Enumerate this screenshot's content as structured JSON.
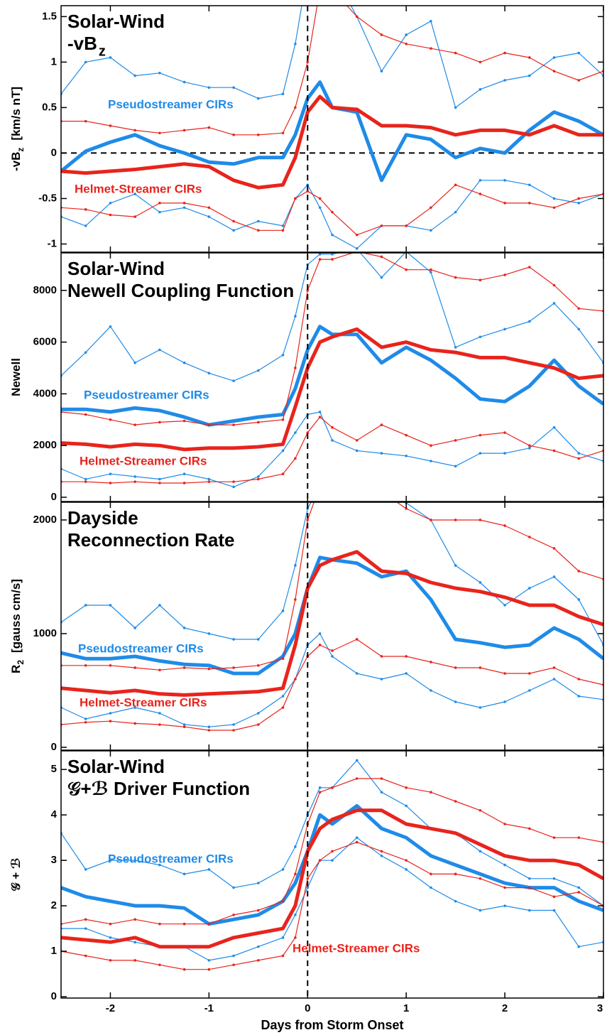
{
  "chart_data": [
    {
      "type": "line",
      "title_lines": [
        "Solar-Wind",
        "-vB"
      ],
      "title_subscript": "z",
      "ylabel": "-vB",
      "ylabel_subscript": "z",
      "ylabel_unit": "[km/s nT]",
      "zero_line": true,
      "x": [
        -2.5,
        -2.25,
        -2,
        -1.75,
        -1.5,
        -1.25,
        -1,
        -0.75,
        -0.5,
        -0.25,
        -0.125,
        0,
        0.125,
        0.25,
        0.5,
        0.75,
        1,
        1.25,
        1.5,
        1.75,
        2,
        2.25,
        2.5,
        2.75,
        3
      ],
      "xlim": [
        -2.5,
        3
      ],
      "ylim": [
        -1.09,
        1.62
      ],
      "yticks": [
        -1,
        -0.5,
        0,
        0.5,
        1,
        1.5
      ],
      "series": [
        {
          "name": "Pseudostreamer CIRs",
          "color": "#1f8be8",
          "values": [
            -0.2,
            0.02,
            0.12,
            0.2,
            0.08,
            0.0,
            -0.1,
            -0.12,
            -0.05,
            -0.05,
            0.2,
            0.6,
            0.78,
            0.5,
            0.45,
            -0.3,
            0.2,
            0.15,
            -0.05,
            0.05,
            0.0,
            0.25,
            0.45,
            0.35,
            0.2
          ],
          "upper": [
            0.65,
            1.0,
            1.05,
            0.85,
            0.88,
            0.78,
            0.72,
            0.72,
            0.6,
            0.65,
            1.2,
            2.0,
            2.0,
            2.0,
            1.5,
            0.9,
            1.3,
            1.45,
            0.5,
            0.7,
            0.8,
            0.85,
            1.05,
            1.1,
            0.85
          ],
          "lower": [
            -0.7,
            -0.8,
            -0.55,
            -0.45,
            -0.65,
            -0.6,
            -0.7,
            -0.85,
            -0.75,
            -0.8,
            -0.5,
            -0.35,
            -0.6,
            -0.9,
            -1.05,
            -0.8,
            -0.8,
            -0.85,
            -0.65,
            -0.3,
            -0.3,
            -0.35,
            -0.5,
            -0.55,
            -0.45
          ]
        },
        {
          "name": "Helmet-Streamer CIRs",
          "color": "#e8241c",
          "values": [
            -0.2,
            -0.22,
            -0.2,
            -0.18,
            -0.15,
            -0.12,
            -0.15,
            -0.3,
            -0.38,
            -0.35,
            -0.05,
            0.45,
            0.62,
            0.5,
            0.48,
            0.3,
            0.3,
            0.28,
            0.2,
            0.25,
            0.25,
            0.2,
            0.3,
            0.2,
            0.2
          ],
          "upper": [
            0.35,
            0.35,
            0.3,
            0.25,
            0.22,
            0.25,
            0.28,
            0.2,
            0.2,
            0.22,
            0.5,
            1.0,
            1.8,
            1.8,
            1.5,
            1.3,
            1.2,
            1.15,
            1.1,
            1.0,
            1.1,
            1.05,
            0.9,
            0.8,
            0.9
          ],
          "lower": [
            -0.6,
            -0.62,
            -0.68,
            -0.7,
            -0.55,
            -0.55,
            -0.6,
            -0.75,
            -0.85,
            -0.85,
            -0.5,
            -0.42,
            -0.5,
            -0.65,
            -0.9,
            -0.8,
            -0.8,
            -0.6,
            -0.35,
            -0.45,
            -0.55,
            -0.55,
            -0.6,
            -0.5,
            -0.45
          ]
        }
      ]
    },
    {
      "type": "line",
      "title_lines": [
        "Solar-Wind",
        "Newell Coupling Function"
      ],
      "ylabel": "Newell",
      "x": [
        -2.5,
        -2.25,
        -2,
        -1.75,
        -1.5,
        -1.25,
        -1,
        -0.75,
        -0.5,
        -0.25,
        -0.125,
        0,
        0.125,
        0.25,
        0.5,
        0.75,
        1,
        1.25,
        1.5,
        1.75,
        2,
        2.25,
        2.5,
        2.75,
        3
      ],
      "xlim": [
        -2.5,
        3
      ],
      "ylim": [
        -165,
        9450
      ],
      "yticks": [
        0,
        2000,
        4000,
        6000,
        8000
      ],
      "series": [
        {
          "name": "Pseudostreamer CIRs",
          "color": "#1f8be8",
          "values": [
            3400,
            3400,
            3300,
            3450,
            3350,
            3100,
            2800,
            2950,
            3100,
            3200,
            4200,
            5700,
            6600,
            6300,
            6300,
            5200,
            5800,
            5300,
            4600,
            3800,
            3700,
            4300,
            5300,
            4300,
            3600
          ],
          "upper": [
            4700,
            5600,
            6600,
            5200,
            5700,
            5200,
            4800,
            4500,
            4900,
            5500,
            7000,
            9000,
            9400,
            9400,
            9600,
            8500,
            9500,
            8700,
            5800,
            6200,
            6500,
            6800,
            7500,
            6500,
            5200
          ],
          "lower": [
            1100,
            700,
            900,
            800,
            700,
            900,
            700,
            400,
            800,
            1800,
            2500,
            3200,
            3300,
            2200,
            1800,
            1700,
            1600,
            1400,
            1200,
            1700,
            1700,
            1900,
            2700,
            1700,
            1400
          ]
        },
        {
          "name": "Helmet-Streamer CIRs",
          "color": "#e8241c",
          "values": [
            2100,
            2050,
            1950,
            2050,
            2000,
            1850,
            1900,
            1900,
            1950,
            2050,
            3500,
            5000,
            6000,
            6200,
            6500,
            5800,
            6000,
            5700,
            5600,
            5400,
            5400,
            5200,
            5000,
            4600,
            4700
          ],
          "upper": [
            3300,
            3200,
            3000,
            2800,
            2900,
            2950,
            2800,
            2800,
            2900,
            3000,
            5000,
            8000,
            9200,
            9200,
            9500,
            9300,
            8800,
            8800,
            8500,
            8400,
            8600,
            8900,
            8200,
            7300,
            7200
          ],
          "lower": [
            600,
            600,
            550,
            600,
            550,
            550,
            600,
            600,
            700,
            900,
            1500,
            2500,
            3100,
            2700,
            2200,
            2800,
            2400,
            2000,
            2200,
            2400,
            2500,
            2000,
            1800,
            1500,
            1800
          ]
        }
      ]
    },
    {
      "type": "line",
      "title_lines": [
        "Dayside",
        "Reconnection Rate"
      ],
      "ylabel": "R",
      "ylabel_subscript": "2",
      "ylabel_unit": "[gauss cm/s]",
      "x": [
        -2.5,
        -2.25,
        -2,
        -1.75,
        -1.5,
        -1.25,
        -1,
        -0.75,
        -0.5,
        -0.25,
        -0.125,
        0,
        0.125,
        0.25,
        0.5,
        0.75,
        1,
        1.25,
        1.5,
        1.75,
        2,
        2.25,
        2.5,
        2.75,
        3
      ],
      "xlim": [
        -2.5,
        3
      ],
      "ylim": [
        -25,
        2156
      ],
      "yticks": [
        0,
        1000,
        2000
      ],
      "series": [
        {
          "name": "Pseudostreamer CIRs",
          "color": "#1f8be8",
          "values": [
            830,
            780,
            780,
            800,
            760,
            730,
            720,
            650,
            650,
            800,
            1000,
            1400,
            1670,
            1650,
            1620,
            1500,
            1550,
            1300,
            950,
            920,
            880,
            900,
            1050,
            950,
            780
          ],
          "upper": [
            1100,
            1250,
            1250,
            1050,
            1250,
            1050,
            1000,
            950,
            950,
            1200,
            1600,
            2100,
            2300,
            2300,
            2300,
            2300,
            2150,
            2000,
            1600,
            1450,
            1250,
            1400,
            1500,
            1300,
            900
          ],
          "lower": [
            350,
            250,
            300,
            350,
            300,
            200,
            180,
            200,
            300,
            450,
            600,
            900,
            1000,
            800,
            650,
            600,
            650,
            500,
            400,
            350,
            400,
            500,
            600,
            450,
            420
          ]
        },
        {
          "name": "Helmet-Streamer CIRs",
          "color": "#e8241c",
          "values": [
            520,
            500,
            480,
            500,
            470,
            460,
            470,
            480,
            490,
            520,
            900,
            1400,
            1600,
            1650,
            1720,
            1550,
            1530,
            1450,
            1400,
            1370,
            1320,
            1250,
            1250,
            1150,
            1080
          ],
          "upper": [
            720,
            720,
            720,
            700,
            680,
            700,
            690,
            700,
            720,
            780,
            1300,
            2000,
            2300,
            2300,
            2300,
            2250,
            2100,
            2000,
            2000,
            2000,
            1950,
            1850,
            1750,
            1550,
            1480
          ],
          "lower": [
            200,
            220,
            230,
            210,
            200,
            180,
            150,
            150,
            200,
            350,
            600,
            800,
            900,
            850,
            950,
            800,
            800,
            750,
            700,
            700,
            650,
            650,
            700,
            600,
            550
          ]
        }
      ]
    },
    {
      "type": "line",
      "title_lines": [
        "Solar-Wind",
        "𝒢+ℬ Driver Function"
      ],
      "ylabel": "𝒢 + ℬ",
      "xlabel": "Days from Storm Onset",
      "x": [
        -2.5,
        -2.25,
        -2,
        -1.75,
        -1.5,
        -1.25,
        -1,
        -0.75,
        -0.5,
        -0.25,
        -0.125,
        0,
        0.125,
        0.25,
        0.5,
        0.75,
        1,
        1.25,
        1.5,
        1.75,
        2,
        2.25,
        2.5,
        2.75,
        3
      ],
      "xlim": [
        -2.5,
        3
      ],
      "xticks": [
        -2,
        -1,
        0,
        1,
        2,
        3
      ],
      "ylim": [
        -0.03,
        5.41
      ],
      "yticks": [
        0,
        1,
        2,
        3,
        4,
        5
      ],
      "series": [
        {
          "name": "Pseudostreamer CIRs",
          "color": "#1f8be8",
          "values": [
            2.4,
            2.2,
            2.1,
            2.0,
            2.0,
            1.95,
            1.6,
            1.7,
            1.8,
            2.1,
            2.5,
            3.2,
            4.0,
            3.8,
            4.2,
            3.7,
            3.5,
            3.1,
            2.9,
            2.7,
            2.5,
            2.4,
            2.4,
            2.1,
            1.9
          ],
          "upper": [
            3.6,
            2.8,
            3.0,
            3.0,
            2.9,
            2.7,
            2.8,
            2.4,
            2.5,
            2.8,
            3.3,
            4.0,
            4.6,
            4.6,
            5.2,
            4.5,
            4.2,
            3.7,
            3.6,
            3.2,
            2.9,
            2.6,
            2.6,
            2.4,
            2.0
          ],
          "lower": [
            1.5,
            1.5,
            1.3,
            1.2,
            1.1,
            1.1,
            0.8,
            0.9,
            1.1,
            1.3,
            1.8,
            2.4,
            3.0,
            3.0,
            3.5,
            3.1,
            2.8,
            2.4,
            2.1,
            1.9,
            2.0,
            1.9,
            1.9,
            1.1,
            1.2
          ]
        },
        {
          "name": "Helmet-Streamer CIRs",
          "color": "#e8241c",
          "values": [
            1.3,
            1.25,
            1.2,
            1.3,
            1.1,
            1.1,
            1.1,
            1.3,
            1.4,
            1.5,
            2.0,
            3.2,
            3.7,
            3.9,
            4.1,
            4.1,
            3.8,
            3.7,
            3.6,
            3.35,
            3.1,
            3.0,
            3.0,
            2.9,
            2.6
          ],
          "upper": [
            1.6,
            1.7,
            1.6,
            1.7,
            1.6,
            1.6,
            1.6,
            1.8,
            1.9,
            2.1,
            2.7,
            3.8,
            4.5,
            4.6,
            4.8,
            4.8,
            4.6,
            4.5,
            4.3,
            4.1,
            3.8,
            3.7,
            3.5,
            3.5,
            3.4
          ],
          "lower": [
            1.0,
            0.9,
            0.8,
            0.8,
            0.7,
            0.6,
            0.6,
            0.7,
            0.8,
            0.9,
            1.3,
            2.6,
            3.0,
            3.2,
            3.4,
            3.2,
            3.0,
            2.7,
            2.7,
            2.6,
            2.4,
            2.4,
            2.2,
            2.3,
            2.0
          ]
        }
      ]
    }
  ]
}
